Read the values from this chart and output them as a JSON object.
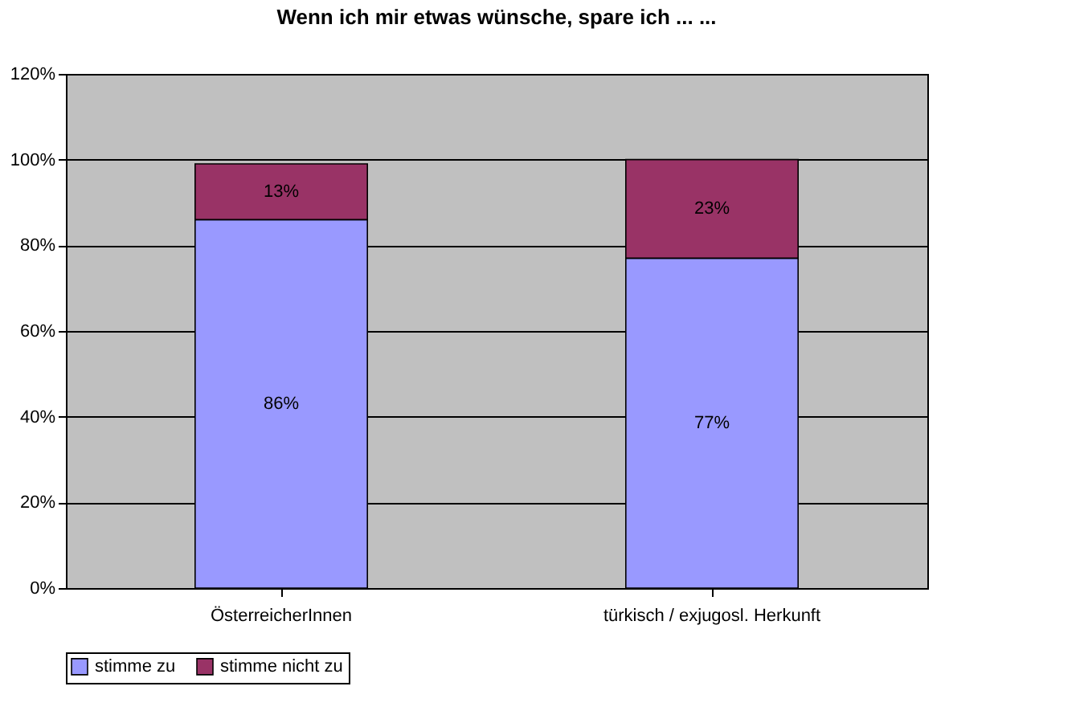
{
  "chart_data": {
    "type": "bar",
    "title": "Wenn ich mir etwas wünsche, spare ich ... ...",
    "categories": [
      "ÖsterreicherInnen",
      "türkisch / exjugosl. Herkunft"
    ],
    "stacked": true,
    "series": [
      {
        "name": "stimme zu",
        "color": "#9999ff",
        "values": [
          86,
          77
        ],
        "value_labels": [
          "86%",
          "77%"
        ]
      },
      {
        "name": "stimme nicht zu",
        "color": "#993366",
        "values": [
          13,
          23
        ],
        "value_labels": [
          "13%",
          "23%"
        ]
      }
    ],
    "ylim": [
      0,
      120
    ],
    "yticks": [
      {
        "value": 0,
        "label": "0%"
      },
      {
        "value": 20,
        "label": "20%"
      },
      {
        "value": 40,
        "label": "40%"
      },
      {
        "value": 60,
        "label": "60%"
      },
      {
        "value": 80,
        "label": "80%"
      },
      {
        "value": 100,
        "label": "100%"
      },
      {
        "value": 120,
        "label": "120%"
      }
    ],
    "grid": "y",
    "legend": "bottom"
  }
}
